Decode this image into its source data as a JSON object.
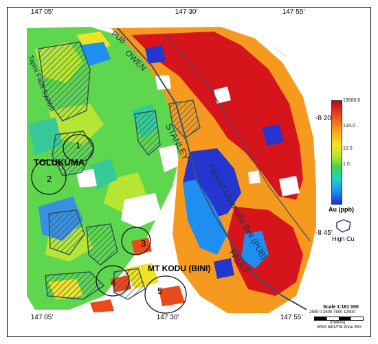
{
  "map": {
    "top_ticks": [
      "147 05'",
      "147 30'",
      "147 55'"
    ],
    "bottom_ticks": [
      "147 05'",
      "147 30'",
      "147 55'"
    ],
    "right_ticks": [
      "-8 20'",
      "-8 45'"
    ],
    "region_labels": {
      "pub": "PUB",
      "owen": "OWEN",
      "stanley": "STANLEY",
      "fault": "FAULT",
      "papuan_ultramafic_belt": "Papuan Ultramafic Belt (PUB)",
      "tapini": "Tapini Fault System",
      "tolukuma": "TOLUKUMA",
      "mt_kodu": "MT KODU (BINI)"
    },
    "targets": [
      "1",
      "2",
      "3",
      "4",
      "5"
    ]
  },
  "legend": {
    "values": [
      "19580.0",
      "134.0",
      "10.0",
      "1.0"
    ],
    "unit_label": "Au (ppb)",
    "high_cu_label": "High Cu",
    "colors": [
      "#c4001b",
      "#ea4a1c",
      "#f79b1e",
      "#f6e21f",
      "#b7e52d",
      "#44d34b",
      "#1fd3c9",
      "#1e8ef0",
      "#1a2fd6"
    ]
  },
  "scale": {
    "title": "Scale 1:161 000",
    "numbers": "2500 0 2500 7500 12500",
    "unit": "(metres)",
    "projection": "WGS 84/UTM Zone 55S"
  }
}
